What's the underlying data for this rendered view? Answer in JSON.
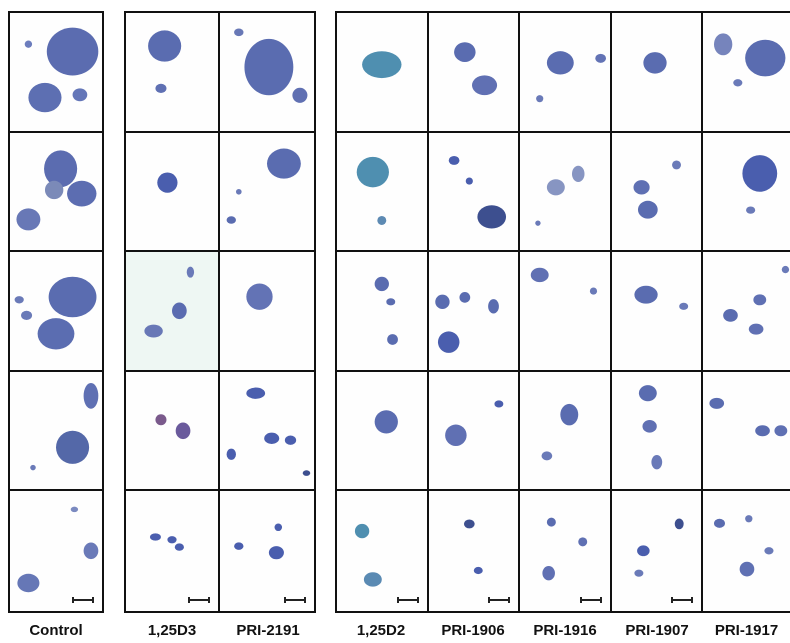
{
  "labels": {
    "control": "Control",
    "d3": "1,25D3",
    "pri2191": "PRI-2191",
    "d2": "1,25D2",
    "pri1906": "PRI-1906",
    "pri1916": "PRI-1916",
    "pri1907": "PRI-1907",
    "pri1917": "PRI-1917"
  },
  "colors": {
    "colony_main": "#5a6db0",
    "colony_dark": "#3d4f8f",
    "colony_teal": "#4f8fb0",
    "border": "#111111",
    "tint_cell": "#eef7f3"
  },
  "image": {
    "content": "colony micrographs with scale bars in bottom row"
  }
}
